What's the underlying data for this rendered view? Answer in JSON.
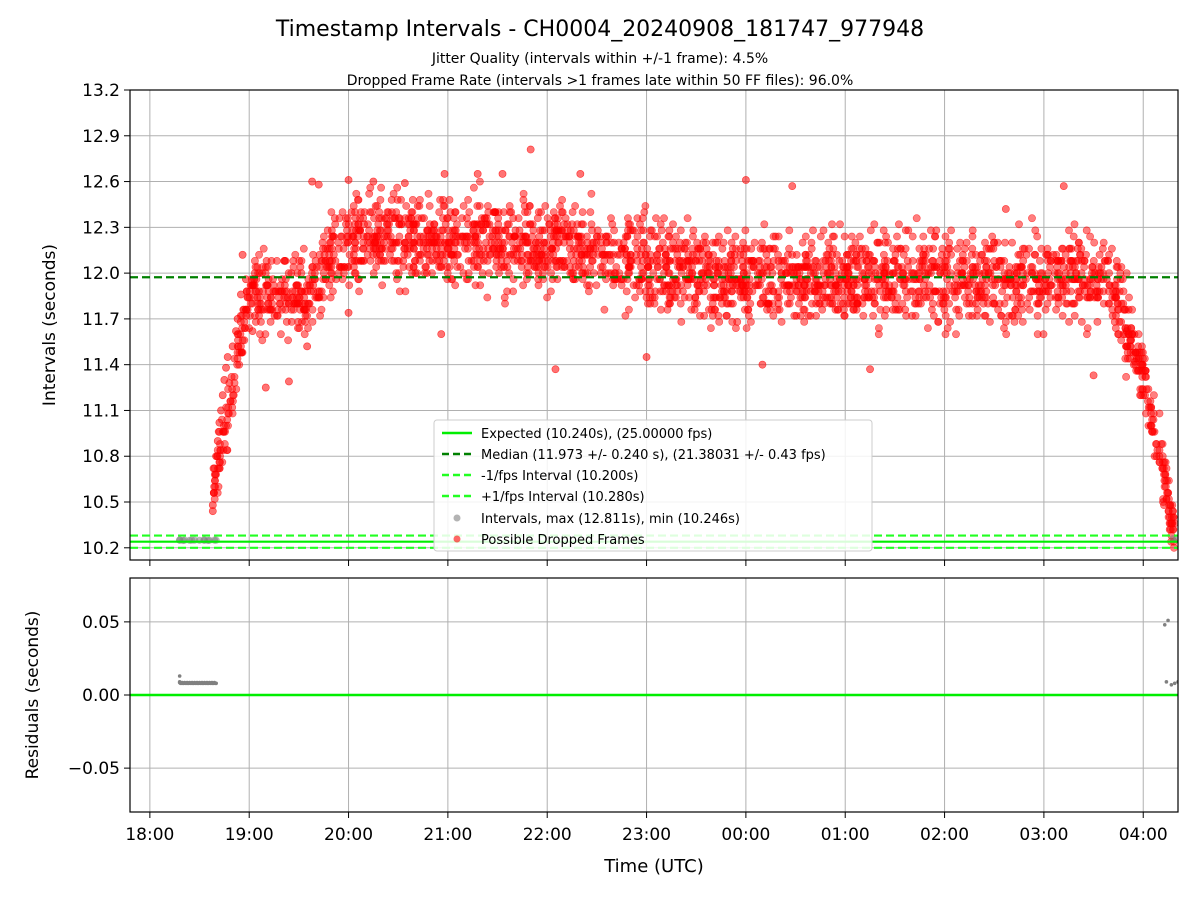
{
  "figure": {
    "title": "Timestamp Intervals - CH0004_20240908_181747_977948",
    "subtitle_1": "Jitter Quality (intervals within +/-1 frame): 4.5%",
    "subtitle_2": "Dropped Frame Rate (intervals >1 frames late within 50 FF files): 96.0%",
    "colors": {
      "expected": "#00ee00",
      "median": "#008000",
      "interval": "#22ff22",
      "dropped": "#ff0000",
      "normal": "#808080",
      "grid": "#b0b0b0"
    }
  },
  "chart_data": [
    {
      "type": "scatter",
      "panel": "intervals",
      "xlabel": "",
      "ylabel": "Intervals (seconds)",
      "xlim": [
        "2024-09-08 17:48",
        "2024-09-09 04:21"
      ],
      "ylim": [
        10.12,
        13.2
      ],
      "yticks": [
        "10.2",
        "10.5",
        "10.8",
        "11.1",
        "11.4",
        "11.7",
        "12.0",
        "12.3",
        "12.6",
        "12.9",
        "13.2"
      ],
      "xticks": [
        "18:00",
        "19:00",
        "20:00",
        "21:00",
        "22:00",
        "23:00",
        "00:00",
        "01:00",
        "02:00",
        "03:00",
        "04:00"
      ],
      "grid": true,
      "legend_position": "lower-center",
      "reference_lines": [
        {
          "name": "Expected (10.240s), (25.00000 fps)",
          "y": 10.24,
          "style": "solid"
        },
        {
          "name": "Median (11.973 +/- 0.240 s), (21.38031 +/- 0.43 fps)",
          "y": 11.973,
          "style": "dashed"
        },
        {
          "name": "-1/fps Interval (10.200s)",
          "y": 10.2,
          "style": "dashed"
        },
        {
          "name": "+1/fps Interval (10.280s)",
          "y": 10.28,
          "style": "dashed"
        }
      ],
      "series": [
        {
          "name": "Intervals, max (12.811s), min (10.246s)",
          "points": [
            [
              "2024-09-08 18:18",
              10.251
            ],
            [
              "2024-09-08 18:21",
              10.25
            ],
            [
              "2024-09-08 18:24",
              10.249
            ],
            [
              "2024-09-08 18:27",
              10.25
            ],
            [
              "2024-09-08 18:30",
              10.249
            ],
            [
              "2024-09-08 18:33",
              10.25
            ],
            [
              "2024-09-08 18:36",
              10.249
            ],
            [
              "2024-09-08 18:39",
              10.25
            ],
            [
              "2024-09-08 18:20",
              10.248
            ],
            [
              "2024-09-08 18:35",
              10.248
            ],
            [
              "2024-09-09 04:18",
              10.26
            ],
            [
              "2024-09-09 04:20",
              10.254
            ]
          ]
        },
        {
          "name": "Possible Dropped Frames",
          "points": [
            [
              "2024-09-08 18:38",
              10.48
            ],
            [
              "2024-09-08 18:38",
              10.44
            ],
            [
              "2024-09-08 18:39",
              10.72
            ],
            [
              "2024-09-08 18:40",
              10.8
            ],
            [
              "2024-09-08 18:41",
              10.9
            ],
            [
              "2024-09-08 18:42",
              11.02
            ],
            [
              "2024-09-08 18:43",
              11.1
            ],
            [
              "2024-09-08 18:44",
              11.2
            ],
            [
              "2024-09-08 18:45",
              11.3
            ],
            [
              "2024-09-08 18:46",
              11.38
            ],
            [
              "2024-09-08 18:47",
              11.45
            ],
            [
              "2024-09-08 18:48",
              11.28
            ],
            [
              "2024-09-08 18:50",
              11.52
            ],
            [
              "2024-09-08 18:52",
              11.62
            ],
            [
              "2024-09-08 18:53",
              11.7
            ],
            [
              "2024-09-08 18:55",
              11.86
            ],
            [
              "2024-09-08 18:56",
              12.12
            ],
            [
              "2024-09-08 18:58",
              11.96
            ],
            [
              "2024-09-08 19:02",
              11.62
            ],
            [
              "2024-09-08 19:10",
              11.25
            ],
            [
              "2024-09-08 19:24",
              11.29
            ],
            [
              "2024-09-08 19:35",
              11.52
            ],
            [
              "2024-09-08 19:38",
              12.6
            ],
            [
              "2024-09-08 19:42",
              12.58
            ],
            [
              "2024-09-08 20:00",
              12.61
            ],
            [
              "2024-09-08 20:00",
              11.74
            ],
            [
              "2024-09-08 20:15",
              12.6
            ],
            [
              "2024-09-08 20:34",
              12.59
            ],
            [
              "2024-09-08 20:56",
              11.6
            ],
            [
              "2024-09-08 20:58",
              12.65
            ],
            [
              "2024-09-08 21:18",
              12.65
            ],
            [
              "2024-09-08 21:33",
              12.65
            ],
            [
              "2024-09-08 21:50",
              12.81
            ],
            [
              "2024-09-08 22:05",
              11.37
            ],
            [
              "2024-09-08 22:20",
              12.65
            ],
            [
              "2024-09-08 23:00",
              11.45
            ],
            [
              "2024-09-09 00:00",
              12.61
            ],
            [
              "2024-09-09 00:28",
              12.57
            ],
            [
              "2024-09-09 00:10",
              11.4
            ],
            [
              "2024-09-09 01:15",
              11.37
            ],
            [
              "2024-09-09 02:37",
              12.42
            ],
            [
              "2024-09-09 03:12",
              12.57
            ],
            [
              "2024-09-09 03:30",
              11.33
            ],
            [
              "2024-09-09 03:50",
              11.62
            ],
            [
              "2024-09-09 03:55",
              11.42
            ],
            [
              "2024-09-09 04:00",
              11.2
            ],
            [
              "2024-09-09 04:05",
              11.0
            ],
            [
              "2024-09-09 04:08",
              10.8
            ],
            [
              "2024-09-09 04:12",
              10.5
            ],
            [
              "2024-09-09 04:16",
              10.32
            ]
          ]
        }
      ]
    },
    {
      "type": "scatter",
      "panel": "residuals",
      "xlabel": "Time (UTC)",
      "ylabel": "Residuals (seconds)",
      "xlim": [
        "2024-09-08 17:48",
        "2024-09-09 04:21"
      ],
      "ylim": [
        -0.08,
        0.08
      ],
      "yticks": [
        "−0.05",
        "0.00",
        "0.05"
      ],
      "xticks": [
        "18:00",
        "19:00",
        "20:00",
        "21:00",
        "22:00",
        "23:00",
        "00:00",
        "01:00",
        "02:00",
        "03:00",
        "04:00"
      ],
      "grid": true,
      "reference_lines": [
        {
          "name": "Expected",
          "y": 0.0,
          "style": "solid"
        }
      ],
      "series": [
        {
          "name": "",
          "points": [
            [
              "2024-09-08 18:18",
              0.013
            ],
            [
              "2024-09-08 18:18",
              0.009
            ],
            [
              "2024-09-08 18:20",
              0.008
            ],
            [
              "2024-09-08 18:23",
              0.008
            ],
            [
              "2024-09-08 18:26",
              0.008
            ],
            [
              "2024-09-08 18:29",
              0.008
            ],
            [
              "2024-09-08 18:32",
              0.008
            ],
            [
              "2024-09-08 18:35",
              0.008
            ],
            [
              "2024-09-08 18:38",
              0.008
            ],
            [
              "2024-09-08 18:40",
              0.008
            ],
            [
              "2024-09-09 04:13",
              0.048
            ],
            [
              "2024-09-09 04:15",
              0.051
            ],
            [
              "2024-09-09 04:14",
              0.009
            ],
            [
              "2024-09-09 04:17",
              0.007
            ],
            [
              "2024-09-09 04:19",
              0.008
            ],
            [
              "2024-09-09 04:21",
              0.009
            ]
          ]
        }
      ]
    }
  ]
}
